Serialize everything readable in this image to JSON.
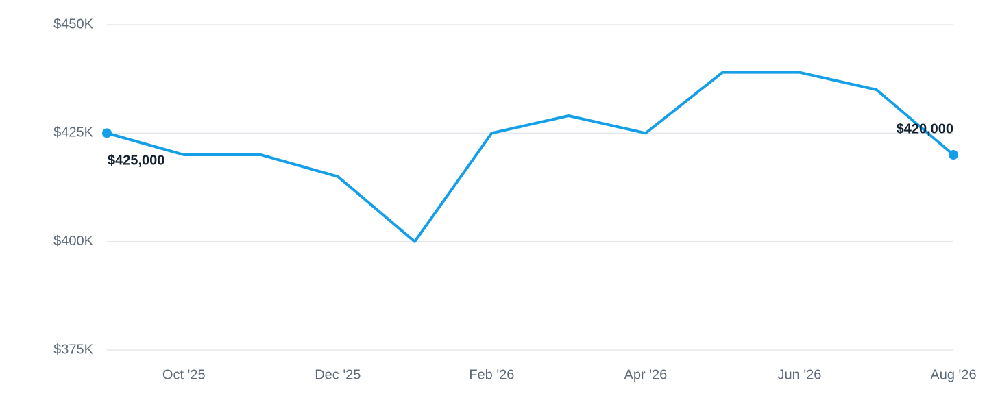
{
  "chart_data": {
    "type": "line",
    "categories": [
      null,
      "Oct '25",
      null,
      "Dec '25",
      null,
      "Feb '26",
      null,
      "Apr '26",
      null,
      "Jun '26",
      null,
      "Aug '26"
    ],
    "series": [
      {
        "color": "#149fe8",
        "values": [
          425000,
          420000,
          420000,
          415000,
          400000,
          425000,
          429000,
          425000,
          439000,
          439000,
          435000,
          420000
        ],
        "value_labels": [
          "$425,000",
          null,
          null,
          null,
          null,
          null,
          null,
          null,
          null,
          null,
          null,
          "$420,000"
        ]
      }
    ],
    "ylim": [
      375000,
      450000
    ],
    "yticks": [
      {
        "value": 375000,
        "label": "$375K"
      },
      {
        "value": 400000,
        "label": "$400K"
      },
      {
        "value": 425000,
        "label": "$425K"
      },
      {
        "value": 450000,
        "label": "$450K"
      }
    ],
    "grid": true
  }
}
